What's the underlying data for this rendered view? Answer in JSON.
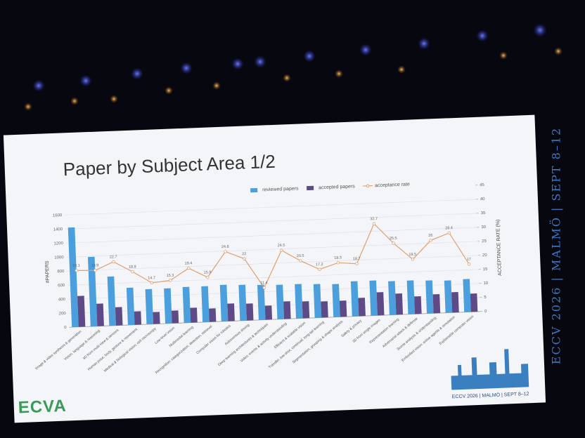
{
  "side_text": "ECCV 2026 | MALMÖ | SEPT 8–12",
  "logo_text": "ECCV 2026 | MALMÖ | SEPT 8–12",
  "brand": "ECVA",
  "chart_data": {
    "type": "bar",
    "title": "Paper by Subject Area 1/2",
    "ylabel": "#PAPERS",
    "y2label": "ACCEPTANCE RATE (%)",
    "categories": [
      "Image & video synthesis & generation",
      "Vision, language & reasoning",
      "3D from multi-view & sensors",
      "Human pose, body, gesture & movement",
      "Medical & biological vision; cell microscopy",
      "Low-level vision",
      "Multimodal learning",
      "Recognition: categorization, detection, retrieval",
      "Computer vision for robotics",
      "Autonomous driving",
      "Deep learning architectures & techniques",
      "Video: events & activity understanding",
      "Efficient & scalable vision",
      "Transfer, low-shot, continual, long-tail learning",
      "Segmentation, grouping & shape analysis",
      "Safety & privacy",
      "3D from single images",
      "Representation learning",
      "Adversarial attack & defense",
      "Scene analysis & understanding",
      "Embodied vision: active agents & simulation",
      "Explainable computer vision"
    ],
    "series": [
      {
        "name": "reviewed papers",
        "color": "#4a9fdc",
        "values": [
          1420,
          990,
          700,
          530,
          500,
          500,
          510,
          510,
          520,
          510,
          500,
          490,
          490,
          480,
          470,
          500,
          500,
          480,
          480,
          470,
          460,
          470
        ]
      },
      {
        "name": "accepted papers",
        "color": "#5e4a86",
        "values": [
          440,
          320,
          260,
          190,
          170,
          180,
          210,
          190,
          250,
          240,
          200,
          250,
          240,
          230,
          230,
          260,
          330,
          300,
          250,
          270,
          290,
          260
        ]
      },
      {
        "name": "acceptance rate",
        "color": "#e0a070",
        "axis": "y2",
        "type": "line",
        "values": [
          20.1,
          19.9,
          22.7,
          18.9,
          14.7,
          15.3,
          19.4,
          15.9,
          24.8,
          22.0,
          11.4,
          24.5,
          20.5,
          17.2,
          19.3,
          18.7,
          32.7,
          25.5,
          19.5,
          26.0,
          28.4,
          17.0
        ]
      }
    ],
    "ylim": [
      0,
      1600
    ],
    "yticks": [
      0,
      200,
      400,
      600,
      800,
      1000,
      1200,
      1400,
      1600
    ],
    "y2lim": [
      0,
      45
    ],
    "y2ticks": [
      0,
      5,
      10,
      15,
      20,
      25,
      30,
      35,
      40,
      45
    ],
    "grid": true,
    "legend": "top"
  }
}
